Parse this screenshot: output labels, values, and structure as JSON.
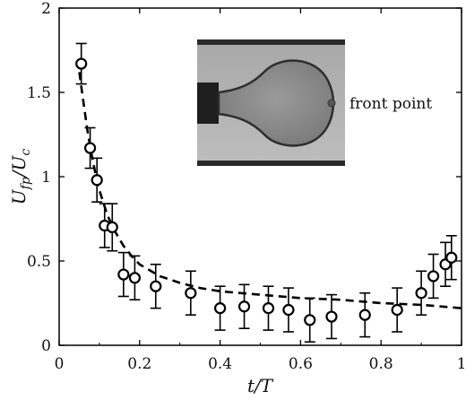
{
  "chart_data": {
    "type": "scatter",
    "title": "",
    "xlabel": "t/T",
    "ylabel": "U_fp/U_c",
    "xlim": [
      0,
      1
    ],
    "ylim": [
      0,
      2
    ],
    "x_ticks": [
      "0",
      "0.2",
      "0.4",
      "0.6",
      "0.8",
      "1"
    ],
    "y_ticks": [
      "0",
      "0.5",
      "1",
      "1.5",
      "2"
    ],
    "grid": false,
    "series": [
      {
        "style": "open-circle markers with error bars",
        "color": "#000000",
        "points": [
          {
            "x": 0.055,
            "y": 1.67,
            "err": 0.12
          },
          {
            "x": 0.077,
            "y": 1.17,
            "err": 0.12
          },
          {
            "x": 0.094,
            "y": 0.98,
            "err": 0.13
          },
          {
            "x": 0.113,
            "y": 0.71,
            "err": 0.13
          },
          {
            "x": 0.132,
            "y": 0.7,
            "err": 0.14
          },
          {
            "x": 0.16,
            "y": 0.42,
            "err": 0.13
          },
          {
            "x": 0.188,
            "y": 0.4,
            "err": 0.13
          },
          {
            "x": 0.24,
            "y": 0.35,
            "err": 0.13
          },
          {
            "x": 0.327,
            "y": 0.31,
            "err": 0.13
          },
          {
            "x": 0.4,
            "y": 0.22,
            "err": 0.13
          },
          {
            "x": 0.46,
            "y": 0.23,
            "err": 0.13
          },
          {
            "x": 0.52,
            "y": 0.22,
            "err": 0.13
          },
          {
            "x": 0.57,
            "y": 0.21,
            "err": 0.13
          },
          {
            "x": 0.623,
            "y": 0.15,
            "err": 0.13
          },
          {
            "x": 0.677,
            "y": 0.17,
            "err": 0.13
          },
          {
            "x": 0.76,
            "y": 0.18,
            "err": 0.13
          },
          {
            "x": 0.84,
            "y": 0.21,
            "err": 0.13
          },
          {
            "x": 0.9,
            "y": 0.31,
            "err": 0.13
          },
          {
            "x": 0.93,
            "y": 0.41,
            "err": 0.13
          },
          {
            "x": 0.96,
            "y": 0.48,
            "err": 0.13
          },
          {
            "x": 0.975,
            "y": 0.52,
            "err": 0.13
          }
        ]
      },
      {
        "style": "dashed line",
        "color": "#000000",
        "x": [
          0.05,
          0.06,
          0.07,
          0.08,
          0.09,
          0.1,
          0.12,
          0.14,
          0.16,
          0.18,
          0.2,
          0.25,
          0.3,
          0.35,
          0.4,
          0.5,
          0.6,
          0.7,
          0.8,
          0.9,
          1.0
        ],
        "y": [
          1.62,
          1.45,
          1.28,
          1.14,
          1.02,
          0.92,
          0.77,
          0.67,
          0.59,
          0.53,
          0.48,
          0.41,
          0.37,
          0.34,
          0.32,
          0.3,
          0.28,
          0.27,
          0.25,
          0.24,
          0.22
        ]
      }
    ],
    "inset": {
      "content": "photograph of a drop with its front point marked",
      "annotation": "front point"
    }
  }
}
